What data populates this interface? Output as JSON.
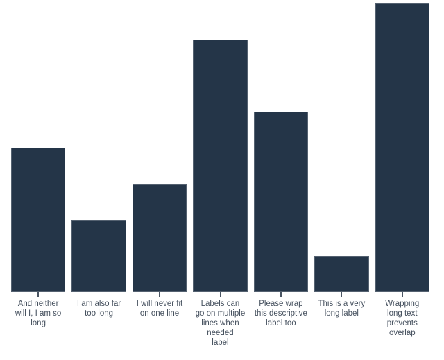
{
  "chart_data": {
    "type": "bar",
    "title": "",
    "xlabel": "",
    "ylabel": "",
    "ylim": [
      0,
      8
    ],
    "grid": false,
    "legend": null,
    "axes": "x-axis category ticks only; no axis line, no y-axis, no value labels",
    "categories": [
      "And neither will I, I am so long",
      "I am also far too long",
      "I will never fit on one line",
      "Labels can go on multiple lines when needed label",
      "Please wrap this descriptive label too",
      "This is a very long label",
      "Wrapping long text prevents overlap"
    ],
    "values": [
      4,
      2,
      3,
      7,
      5,
      1,
      8
    ],
    "bars": [
      {
        "label": "And neither will I, I am so long",
        "lines": [
          "And neither",
          "will I, I am so",
          "long"
        ],
        "value": 4
      },
      {
        "label": "I am also far too long",
        "lines": [
          "I am also far",
          "too long"
        ],
        "value": 2
      },
      {
        "label": "I will never fit on one line",
        "lines": [
          "I will never fit",
          "on one line"
        ],
        "value": 3
      },
      {
        "label": "Labels can go on multiple lines when needed label",
        "lines": [
          "Labels can",
          "go on multiple",
          "lines when",
          "needed",
          "label"
        ],
        "value": 7
      },
      {
        "label": "Please wrap this descriptive label too",
        "lines": [
          "Please wrap",
          "this descriptive",
          "label too"
        ],
        "value": 5
      },
      {
        "label": "This is a very long label",
        "lines": [
          "This is a very",
          "long label"
        ],
        "value": 1
      },
      {
        "label": "Wrapping long text prevents overlap",
        "lines": [
          "Wrapping",
          "long text",
          "prevents",
          "overlap"
        ],
        "value": 8
      }
    ],
    "colors": {
      "bar_fill": "#243548",
      "label_text": "#45505e",
      "tick": "#4a5563",
      "background": "#ffffff"
    }
  }
}
